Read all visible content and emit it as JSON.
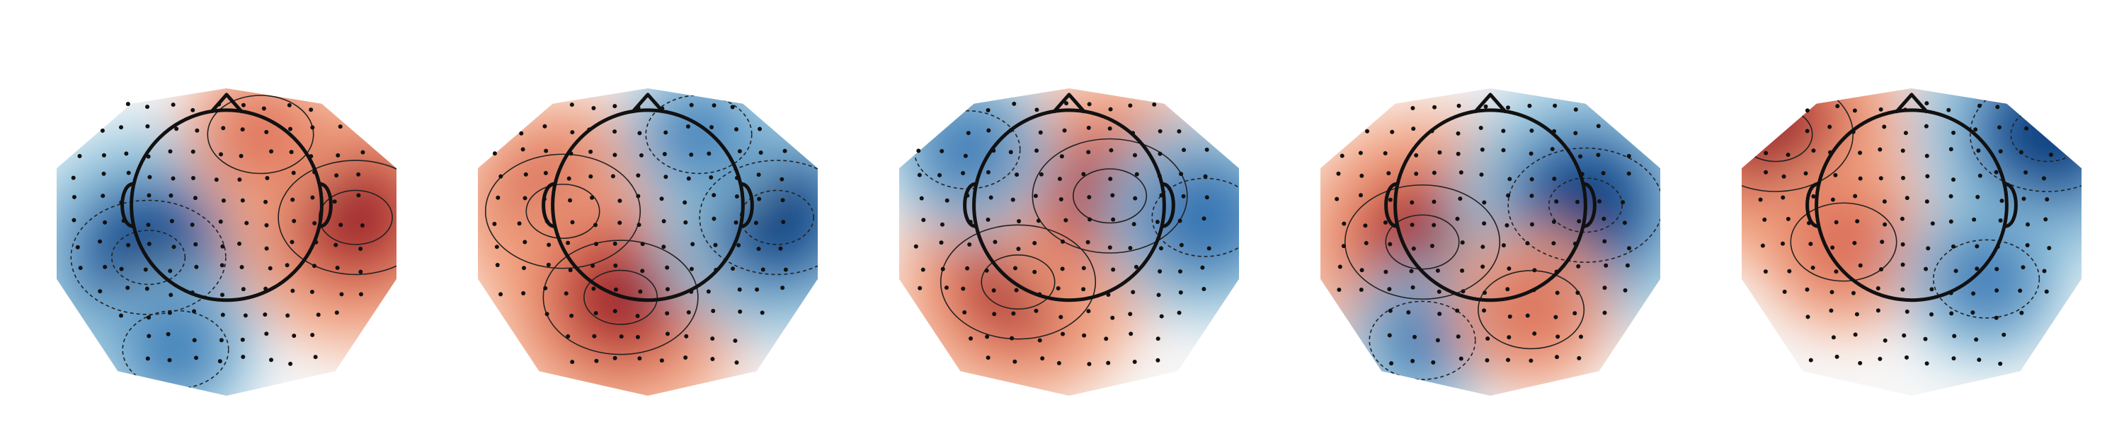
{
  "figure": {
    "type": "eeg-topomap-row",
    "colormap": "RdBu_r",
    "colors": {
      "strong_negative": "#08306b",
      "negative": "#2166ac",
      "mild_negative": "#92c5de",
      "neutral": "#f7f7f7",
      "mild_positive": "#f4a582",
      "positive": "#d6604d",
      "strong_positive": "#8b0a1f",
      "head_outline": "#111111",
      "sensor_dot": "#111111"
    },
    "maps": [
      {
        "id": "map-1",
        "hotspots": [
          {
            "u": 0.27,
            "v": 0.55,
            "sign": -1,
            "strength": 1.0
          },
          {
            "u": 0.88,
            "v": 0.42,
            "sign": 1,
            "strength": 1.0
          },
          {
            "u": 0.6,
            "v": 0.15,
            "sign": 1,
            "strength": 0.35
          },
          {
            "u": 0.35,
            "v": 0.85,
            "sign": -1,
            "strength": 0.4
          }
        ]
      },
      {
        "id": "map-2",
        "hotspots": [
          {
            "u": 0.25,
            "v": 0.4,
            "sign": 1,
            "strength": 0.8
          },
          {
            "u": 0.42,
            "v": 0.68,
            "sign": 1,
            "strength": 1.0
          },
          {
            "u": 0.88,
            "v": 0.42,
            "sign": -1,
            "strength": 0.9
          },
          {
            "u": 0.65,
            "v": 0.15,
            "sign": -1,
            "strength": 0.35
          }
        ]
      },
      {
        "id": "map-3",
        "hotspots": [
          {
            "u": 0.35,
            "v": 0.63,
            "sign": 1,
            "strength": 0.9
          },
          {
            "u": 0.62,
            "v": 0.35,
            "sign": 1,
            "strength": 0.9
          },
          {
            "u": 0.9,
            "v": 0.42,
            "sign": -1,
            "strength": 0.65
          },
          {
            "u": 0.2,
            "v": 0.2,
            "sign": -1,
            "strength": 0.45
          }
        ]
      },
      {
        "id": "map-4",
        "hotspots": [
          {
            "u": 0.3,
            "v": 0.5,
            "sign": 1,
            "strength": 1.0
          },
          {
            "u": 0.78,
            "v": 0.38,
            "sign": -1,
            "strength": 1.0
          },
          {
            "u": 0.3,
            "v": 0.82,
            "sign": -1,
            "strength": 0.35
          },
          {
            "u": 0.62,
            "v": 0.72,
            "sign": 1,
            "strength": 0.4
          }
        ]
      },
      {
        "id": "map-5",
        "hotspots": [
          {
            "u": 0.1,
            "v": 0.15,
            "sign": 1,
            "strength": 1.0
          },
          {
            "u": 0.9,
            "v": 0.15,
            "sign": -1,
            "strength": 1.0
          },
          {
            "u": 0.3,
            "v": 0.5,
            "sign": 1,
            "strength": 0.5
          },
          {
            "u": 0.72,
            "v": 0.62,
            "sign": -1,
            "strength": 0.45
          }
        ]
      }
    ]
  }
}
